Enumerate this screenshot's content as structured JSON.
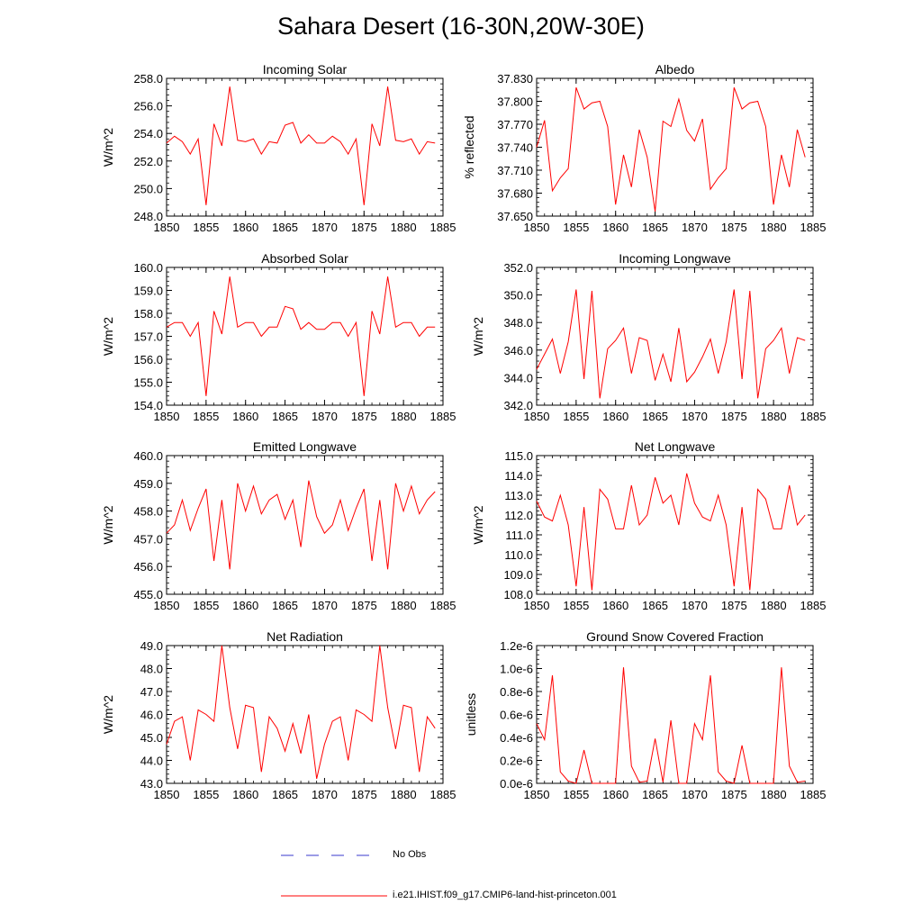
{
  "figure_title": "Sahara Desert (16-30N,20W-30E)",
  "legend": {
    "obs_label": "No Obs",
    "obs_color": "#3a3acc",
    "model_label": "i.e21.IHIST.f09_g17.CMIP6-land-hist-princeton.001",
    "model_color": "#ff0000"
  },
  "chart_data": [
    {
      "type": "line",
      "title": "Incoming Solar",
      "ylabel": "W/m^2",
      "xlim": [
        1850,
        1885
      ],
      "ylim": [
        248.0,
        258.0
      ],
      "xticks": [
        "1850",
        "1855",
        "1860",
        "1865",
        "1870",
        "1875",
        "1880",
        "1885"
      ],
      "yticks": [
        "248.0",
        "250.0",
        "252.0",
        "254.0",
        "256.0",
        "258.0"
      ],
      "series": [
        {
          "color": "#ff0000",
          "x": [
            1850,
            1851,
            1852,
            1853,
            1854,
            1855,
            1856,
            1857,
            1858,
            1859,
            1860,
            1861,
            1862,
            1863,
            1864,
            1865,
            1866,
            1867,
            1868,
            1869,
            1870,
            1871,
            1872,
            1873,
            1874,
            1875,
            1876,
            1877,
            1878,
            1879,
            1880,
            1881,
            1882,
            1883,
            1884
          ],
          "values": [
            253.3,
            253.8,
            253.4,
            252.5,
            253.6,
            248.8,
            254.7,
            253.1,
            257.4,
            253.5,
            253.4,
            253.6,
            252.5,
            253.4,
            253.3,
            254.6,
            254.8,
            253.3,
            253.9,
            253.3,
            253.3,
            253.8,
            253.4,
            252.5,
            253.6,
            248.8,
            254.7,
            253.1,
            257.4,
            253.5,
            253.4,
            253.6,
            252.5,
            253.4,
            253.3
          ]
        }
      ]
    },
    {
      "type": "line",
      "title": "Albedo",
      "ylabel": "% reflected",
      "xlim": [
        1850,
        1885
      ],
      "ylim": [
        37.65,
        37.83
      ],
      "xticks": [
        "1850",
        "1855",
        "1860",
        "1865",
        "1870",
        "1875",
        "1880",
        "1885"
      ],
      "yticks": [
        "37.650",
        "37.680",
        "37.710",
        "37.740",
        "37.770",
        "37.800",
        "37.830"
      ],
      "series": [
        {
          "color": "#ff0000",
          "x": [
            1850,
            1851,
            1852,
            1853,
            1854,
            1855,
            1856,
            1857,
            1858,
            1859,
            1860,
            1861,
            1862,
            1863,
            1864,
            1865,
            1866,
            1867,
            1868,
            1869,
            1870,
            1871,
            1872,
            1873,
            1874,
            1875,
            1876,
            1877,
            1878,
            1879,
            1880,
            1881,
            1882,
            1883,
            1884
          ],
          "values": [
            37.74,
            37.775,
            37.683,
            37.7,
            37.712,
            37.818,
            37.79,
            37.798,
            37.8,
            37.767,
            37.665,
            37.73,
            37.688,
            37.763,
            37.727,
            37.656,
            37.774,
            37.767,
            37.803,
            37.762,
            37.748,
            37.777,
            37.685,
            37.7,
            37.712,
            37.818,
            37.79,
            37.798,
            37.8,
            37.767,
            37.665,
            37.73,
            37.688,
            37.763,
            37.727
          ]
        }
      ]
    },
    {
      "type": "line",
      "title": "Absorbed Solar",
      "ylabel": "W/m^2",
      "xlim": [
        1850,
        1885
      ],
      "ylim": [
        154.0,
        160.0
      ],
      "xticks": [
        "1850",
        "1855",
        "1860",
        "1865",
        "1870",
        "1875",
        "1880",
        "1885"
      ],
      "yticks": [
        "154.0",
        "155.0",
        "156.0",
        "157.0",
        "158.0",
        "159.0",
        "160.0"
      ],
      "series": [
        {
          "color": "#ff0000",
          "x": [
            1850,
            1851,
            1852,
            1853,
            1854,
            1855,
            1856,
            1857,
            1858,
            1859,
            1860,
            1861,
            1862,
            1863,
            1864,
            1865,
            1866,
            1867,
            1868,
            1869,
            1870,
            1871,
            1872,
            1873,
            1874,
            1875,
            1876,
            1877,
            1878,
            1879,
            1880,
            1881,
            1882,
            1883,
            1884
          ],
          "values": [
            157.4,
            157.6,
            157.6,
            157.0,
            157.6,
            154.4,
            158.1,
            157.1,
            159.6,
            157.4,
            157.6,
            157.6,
            157.0,
            157.4,
            157.4,
            158.3,
            158.2,
            157.3,
            157.6,
            157.3,
            157.3,
            157.6,
            157.6,
            157.0,
            157.6,
            154.4,
            158.1,
            157.1,
            159.6,
            157.4,
            157.6,
            157.6,
            157.0,
            157.4,
            157.4
          ]
        }
      ]
    },
    {
      "type": "line",
      "title": "Incoming Longwave",
      "ylabel": "W/m^2",
      "xlim": [
        1850,
        1885
      ],
      "ylim": [
        342.0,
        352.0
      ],
      "xticks": [
        "1850",
        "1855",
        "1860",
        "1865",
        "1870",
        "1875",
        "1880",
        "1885"
      ],
      "yticks": [
        "342.0",
        "344.0",
        "346.0",
        "348.0",
        "350.0",
        "352.0"
      ],
      "series": [
        {
          "color": "#ff0000",
          "x": [
            1850,
            1851,
            1852,
            1853,
            1854,
            1855,
            1856,
            1857,
            1858,
            1859,
            1860,
            1861,
            1862,
            1863,
            1864,
            1865,
            1866,
            1867,
            1868,
            1869,
            1870,
            1871,
            1872,
            1873,
            1874,
            1875,
            1876,
            1877,
            1878,
            1879,
            1880,
            1881,
            1882,
            1883,
            1884
          ],
          "values": [
            344.6,
            345.7,
            346.8,
            344.3,
            346.6,
            350.4,
            343.9,
            350.3,
            342.5,
            346.1,
            346.7,
            347.6,
            344.3,
            346.9,
            346.7,
            343.8,
            345.7,
            343.7,
            347.6,
            343.7,
            344.4,
            345.5,
            346.8,
            344.3,
            346.6,
            350.4,
            343.9,
            350.3,
            342.5,
            346.1,
            346.7,
            347.6,
            344.3,
            346.9,
            346.7
          ]
        }
      ]
    },
    {
      "type": "line",
      "title": "Emitted Longwave",
      "ylabel": "W/m^2",
      "xlim": [
        1850,
        1885
      ],
      "ylim": [
        455.0,
        460.0
      ],
      "xticks": [
        "1850",
        "1855",
        "1860",
        "1865",
        "1870",
        "1875",
        "1880",
        "1885"
      ],
      "yticks": [
        "455.0",
        "456.0",
        "457.0",
        "458.0",
        "459.0",
        "460.0"
      ],
      "series": [
        {
          "color": "#ff0000",
          "x": [
            1850,
            1851,
            1852,
            1853,
            1854,
            1855,
            1856,
            1857,
            1858,
            1859,
            1860,
            1861,
            1862,
            1863,
            1864,
            1865,
            1866,
            1867,
            1868,
            1869,
            1870,
            1871,
            1872,
            1873,
            1874,
            1875,
            1876,
            1877,
            1878,
            1879,
            1880,
            1881,
            1882,
            1883,
            1884
          ],
          "values": [
            457.2,
            457.5,
            458.4,
            457.3,
            458.1,
            458.8,
            456.2,
            458.4,
            455.9,
            459.0,
            458.0,
            458.9,
            457.9,
            458.4,
            458.6,
            457.7,
            458.4,
            456.7,
            459.1,
            457.8,
            457.2,
            457.5,
            458.4,
            457.3,
            458.1,
            458.8,
            456.2,
            458.4,
            455.9,
            459.0,
            458.0,
            458.9,
            457.9,
            458.4,
            458.7
          ]
        }
      ]
    },
    {
      "type": "line",
      "title": "Net Longwave",
      "ylabel": "W/m^2",
      "xlim": [
        1850,
        1885
      ],
      "ylim": [
        108.0,
        115.0
      ],
      "xticks": [
        "1850",
        "1855",
        "1860",
        "1865",
        "1870",
        "1875",
        "1880",
        "1885"
      ],
      "yticks": [
        "108.0",
        "109.0",
        "110.0",
        "111.0",
        "112.0",
        "113.0",
        "114.0",
        "115.0"
      ],
      "series": [
        {
          "color": "#ff0000",
          "x": [
            1850,
            1851,
            1852,
            1853,
            1854,
            1855,
            1856,
            1857,
            1858,
            1859,
            1860,
            1861,
            1862,
            1863,
            1864,
            1865,
            1866,
            1867,
            1868,
            1869,
            1870,
            1871,
            1872,
            1873,
            1874,
            1875,
            1876,
            1877,
            1878,
            1879,
            1880,
            1881,
            1882,
            1883,
            1884
          ],
          "values": [
            112.7,
            111.9,
            111.7,
            113.0,
            111.5,
            108.4,
            112.4,
            108.2,
            113.3,
            112.8,
            111.3,
            111.3,
            113.5,
            111.5,
            112.0,
            113.9,
            112.6,
            113.0,
            111.5,
            114.1,
            112.6,
            111.9,
            111.7,
            113.0,
            111.5,
            108.4,
            112.4,
            108.2,
            113.3,
            112.8,
            111.3,
            111.3,
            113.5,
            111.5,
            112.0
          ]
        }
      ]
    },
    {
      "type": "line",
      "title": "Net Radiation",
      "ylabel": "W/m^2",
      "xlim": [
        1850,
        1885
      ],
      "ylim": [
        43.0,
        49.0
      ],
      "xticks": [
        "1850",
        "1855",
        "1860",
        "1865",
        "1870",
        "1875",
        "1880",
        "1885"
      ],
      "yticks": [
        "43.0",
        "44.0",
        "45.0",
        "46.0",
        "47.0",
        "48.0",
        "49.0"
      ],
      "series": [
        {
          "color": "#ff0000",
          "x": [
            1850,
            1851,
            1852,
            1853,
            1854,
            1855,
            1856,
            1857,
            1858,
            1859,
            1860,
            1861,
            1862,
            1863,
            1864,
            1865,
            1866,
            1867,
            1868,
            1869,
            1870,
            1871,
            1872,
            1873,
            1874,
            1875,
            1876,
            1877,
            1878,
            1879,
            1880,
            1881,
            1882,
            1883,
            1884
          ],
          "values": [
            44.7,
            45.7,
            45.9,
            44.0,
            46.2,
            46.0,
            45.7,
            49.0,
            46.3,
            44.5,
            46.4,
            46.3,
            43.5,
            45.9,
            45.4,
            44.4,
            45.6,
            44.3,
            46.0,
            43.2,
            44.7,
            45.7,
            45.9,
            44.0,
            46.2,
            46.0,
            45.7,
            49.0,
            46.3,
            44.5,
            46.4,
            46.3,
            43.5,
            45.9,
            45.4
          ]
        }
      ]
    },
    {
      "type": "line",
      "title": "Ground Snow Covered Fraction",
      "ylabel": "unitless",
      "xlim": [
        1850,
        1885
      ],
      "ylim": [
        0.0,
        1.2e-06
      ],
      "xticks": [
        "1850",
        "1855",
        "1860",
        "1865",
        "1870",
        "1875",
        "1880",
        "1885"
      ],
      "yticks": [
        "0.0e-6",
        "0.2e-6",
        "0.4e-6",
        "0.6e-6",
        "0.8e-6",
        "1.0e-6",
        "1.2e-6"
      ],
      "series": [
        {
          "color": "#ff0000",
          "x": [
            1850,
            1851,
            1852,
            1853,
            1854,
            1855,
            1856,
            1857,
            1858,
            1859,
            1860,
            1861,
            1862,
            1863,
            1864,
            1865,
            1866,
            1867,
            1868,
            1869,
            1870,
            1871,
            1872,
            1873,
            1874,
            1875,
            1876,
            1877,
            1878,
            1879,
            1880,
            1881,
            1882,
            1883,
            1884
          ],
          "values": [
            5.2e-07,
            3.8e-07,
            9.4e-07,
            1e-07,
            2e-08,
            0.0,
            2.9e-07,
            0.0,
            0.0,
            0.0,
            0.0,
            1.01e-06,
            1.5e-07,
            1e-08,
            2e-08,
            3.9e-07,
            1e-08,
            5.5e-07,
            0.0,
            0.0,
            5.2e-07,
            3.8e-07,
            9.4e-07,
            1e-07,
            2e-08,
            0.0,
            3.3e-07,
            0.0,
            0.0,
            0.0,
            0.0,
            1.01e-06,
            1.5e-07,
            1e-08,
            2e-08
          ]
        }
      ]
    }
  ]
}
